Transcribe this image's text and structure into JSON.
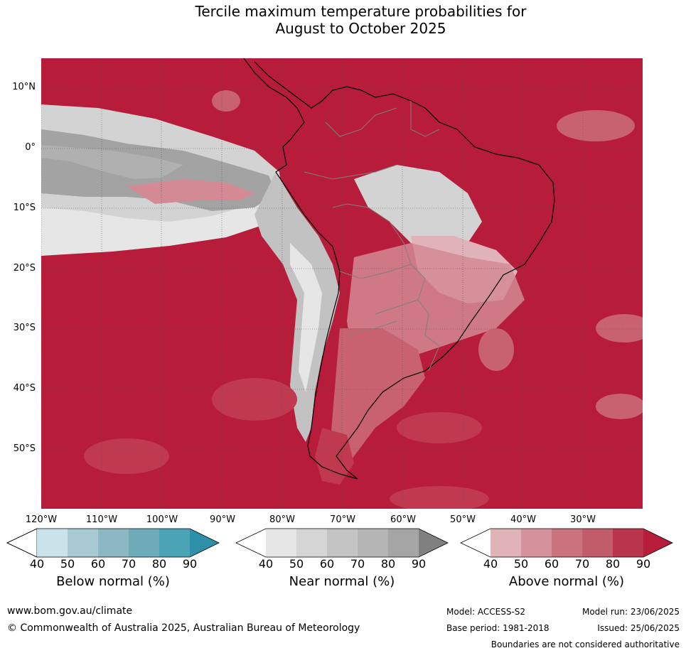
{
  "title_line1": "Tercile maximum temperature probabilities for",
  "title_line2": "August to October 2025",
  "map": {
    "lat_labels": [
      "10°N",
      "0°",
      "10°S",
      "20°S",
      "30°S",
      "40°S",
      "50°S"
    ],
    "lon_labels": [
      "120°W",
      "110°W",
      "100°W",
      "90°W",
      "80°W",
      "70°W",
      "60°W",
      "50°W",
      "40°W",
      "30°W"
    ],
    "colors": {
      "above_90": "#b71c3a",
      "above_80": "#c0394f",
      "above_70": "#c96270",
      "above_60": "#d48a94",
      "above_50": "#e0b3b9",
      "near_40": "#e6e6e6",
      "near_50": "#d3d3d3",
      "near_60": "#c2c2c2",
      "near_70": "#b0b0b0",
      "near_80": "#a3a3a3",
      "land_border": "#000000",
      "country_border": "#808080"
    }
  },
  "colorbars": [
    {
      "title": "Below normal (%)",
      "ticks": [
        "40",
        "50",
        "60",
        "70",
        "80",
        "90"
      ],
      "colors": [
        "#ffffff",
        "#cae3ea",
        "#a8cbd3",
        "#8bb8c3",
        "#6eabb9",
        "#4ba4b6",
        "#2e8fa8"
      ]
    },
    {
      "title": "Near normal (%)",
      "ticks": [
        "40",
        "50",
        "60",
        "70",
        "80",
        "90"
      ],
      "colors": [
        "#ffffff",
        "#e6e6e6",
        "#d5d5d5",
        "#c4c4c4",
        "#b5b5b5",
        "#a5a5a5",
        "#808080"
      ]
    },
    {
      "title": "Above normal (%)",
      "ticks": [
        "40",
        "50",
        "60",
        "70",
        "80",
        "90"
      ],
      "colors": [
        "#ffffff",
        "#e0b3b9",
        "#d4939c",
        "#c8727e",
        "#c25b6a",
        "#b9354b",
        "#b71c3a"
      ]
    }
  ],
  "footer": {
    "url": "www.bom.gov.au/climate",
    "copyright": "© Commonwealth of Australia 2025, Australian Bureau of Meteorology",
    "model": "Model: ACCESS-S2",
    "base_period": "Base period: 1981-2018",
    "model_run": "Model run: 23/06/2025",
    "issued": "Issued: 25/06/2025",
    "disclaimer": "Boundaries are not considered authoritative"
  }
}
